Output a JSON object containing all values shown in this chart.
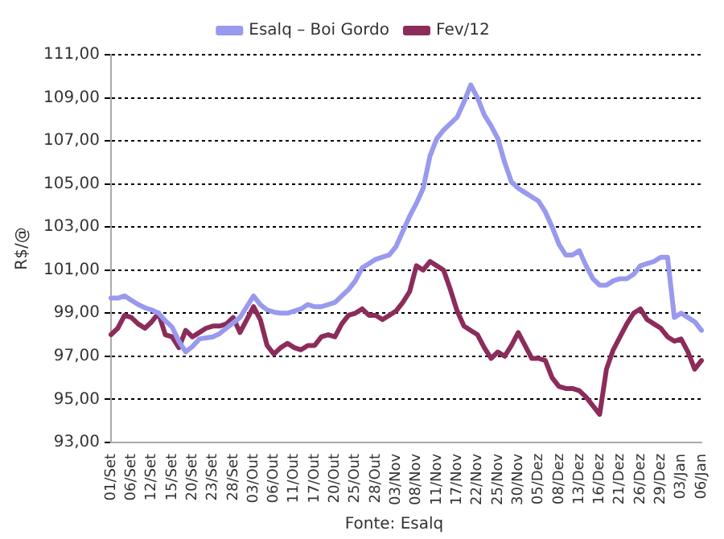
{
  "chart_data": {
    "type": "line",
    "ylabel": "R$/@",
    "annotations": [
      "Fonte: Esalq"
    ],
    "categories": [
      "01/Set",
      null,
      null,
      "06/Set",
      null,
      null,
      "12/Set",
      null,
      null,
      "15/Set",
      null,
      null,
      "20/Set",
      null,
      null,
      "23/Set",
      null,
      null,
      "28/Set",
      null,
      null,
      "03/Out",
      null,
      null,
      "06/Out",
      null,
      null,
      "11/Out",
      null,
      null,
      "17/Out",
      null,
      null,
      "20/Out",
      null,
      null,
      "25/Out",
      null,
      null,
      "28/Out",
      null,
      null,
      "03/Nov",
      null,
      null,
      "08/Nov",
      null,
      null,
      "11/Nov",
      null,
      null,
      "17/Nov",
      null,
      null,
      "22/Nov",
      null,
      null,
      "25/Nov",
      null,
      null,
      "30/Nov",
      null,
      null,
      "05/Dez",
      null,
      null,
      "08/Dez",
      null,
      null,
      "13/Dez",
      null,
      null,
      "16/Dez",
      null,
      null,
      "21/Dez",
      null,
      null,
      "26/Dez",
      null,
      null,
      "29/Dez",
      null,
      null,
      "03/Jan",
      null,
      null,
      "06/Jan"
    ],
    "series": [
      {
        "name": "Esalq – Boi Gordo",
        "color": "#9999ee",
        "values": [
          99.7,
          99.7,
          99.8,
          99.6,
          99.4,
          99.25,
          99.15,
          99.0,
          98.65,
          98.35,
          97.7,
          97.2,
          97.45,
          97.8,
          97.85,
          97.9,
          98.05,
          98.3,
          98.55,
          98.8,
          99.3,
          99.8,
          99.4,
          99.15,
          99.05,
          99.0,
          99.0,
          99.1,
          99.2,
          99.4,
          99.3,
          99.3,
          99.4,
          99.5,
          99.8,
          100.1,
          100.5,
          101.1,
          101.3,
          101.5,
          101.6,
          101.7,
          102.1,
          102.8,
          103.5,
          104.1,
          104.8,
          106.3,
          107.1,
          107.5,
          107.8,
          108.1,
          108.8,
          109.6,
          109.0,
          108.2,
          107.7,
          107.1,
          106.0,
          105.1,
          104.8,
          104.6,
          104.4,
          104.2,
          103.7,
          103.0,
          102.2,
          101.7,
          101.7,
          101.9,
          101.2,
          100.6,
          100.3,
          100.3,
          100.5,
          100.6,
          100.6,
          100.8,
          101.2,
          101.3,
          101.4,
          101.6,
          101.6,
          98.8,
          99.0,
          98.8,
          98.6,
          98.2
        ]
      },
      {
        "name": "Fev/12",
        "color": "#8b2c5a",
        "values": [
          98.0,
          98.3,
          98.9,
          98.8,
          98.5,
          98.3,
          98.6,
          99.0,
          98.0,
          97.9,
          97.4,
          98.2,
          97.9,
          98.1,
          98.3,
          98.4,
          98.4,
          98.5,
          98.8,
          98.1,
          98.7,
          99.3,
          98.7,
          97.5,
          97.1,
          97.4,
          97.6,
          97.4,
          97.3,
          97.5,
          97.5,
          97.9,
          98.0,
          97.9,
          98.5,
          98.9,
          99.0,
          99.2,
          98.9,
          98.9,
          98.7,
          98.9,
          99.1,
          99.5,
          100.0,
          101.2,
          101.0,
          101.4,
          101.2,
          101.0,
          100.1,
          99.1,
          98.4,
          98.2,
          98.0,
          97.4,
          96.9,
          97.2,
          97.0,
          97.5,
          98.1,
          97.5,
          96.9,
          96.9,
          96.8,
          96.0,
          95.6,
          95.5,
          95.5,
          95.4,
          95.1,
          94.7,
          94.3,
          96.4,
          97.3,
          97.9,
          98.5,
          99.0,
          99.2,
          98.7,
          98.5,
          98.3,
          97.9,
          97.7,
          97.8,
          97.2,
          96.4,
          96.8
        ]
      }
    ],
    "ylim": [
      93,
      111
    ],
    "yticks": [
      {
        "value": 93,
        "label": "93,00"
      },
      {
        "value": 95,
        "label": "95,00"
      },
      {
        "value": 97,
        "label": "97,00"
      },
      {
        "value": 99,
        "label": "99,00"
      },
      {
        "value": 101,
        "label": "101,00"
      },
      {
        "value": 103,
        "label": "103,00"
      },
      {
        "value": 105,
        "label": "105,00"
      },
      {
        "value": 107,
        "label": "107,00"
      },
      {
        "value": 109,
        "label": "109,00"
      },
      {
        "value": 111,
        "label": "111,00"
      }
    ],
    "grid": "y",
    "legend": "top",
    "marker": "none",
    "line_style": "solid"
  }
}
